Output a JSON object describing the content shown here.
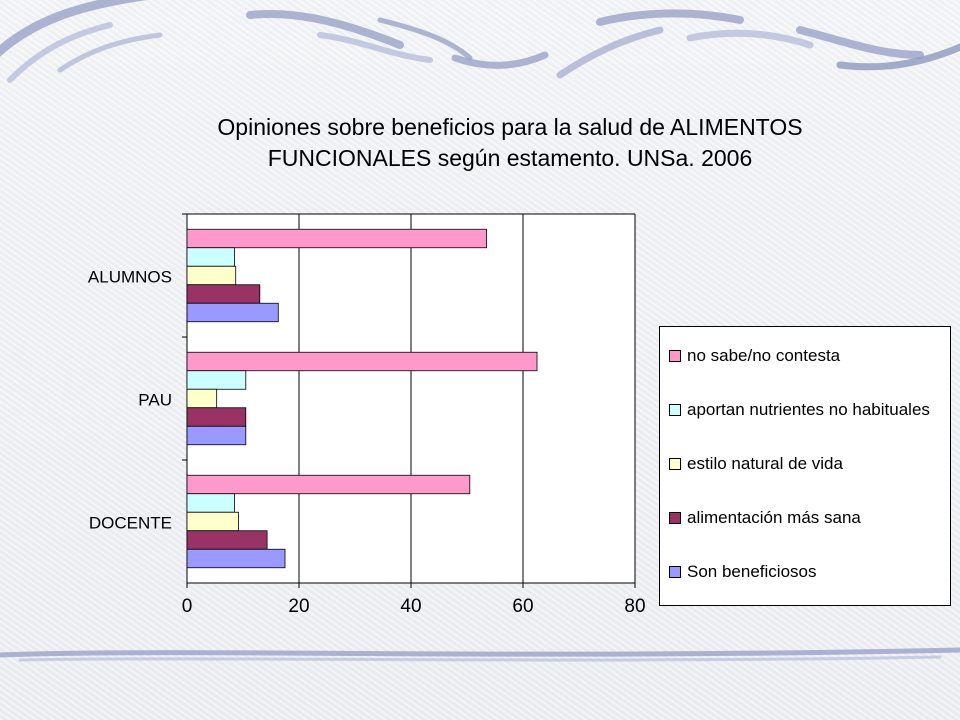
{
  "chart_data": {
    "type": "bar",
    "orientation": "horizontal",
    "title": "Opiniones sobre beneficios para la salud de ALIMENTOS\nFUNCIONALES según estamento. UNSa. 2006",
    "categories": [
      "ALUMNOS",
      "PAU",
      "DOCENTE"
    ],
    "series": [
      {
        "name": "no sabe/no contesta",
        "color": "#ff99cc",
        "values": [
          53.5,
          62.5,
          50.5
        ]
      },
      {
        "name": "aportan nutrientes no habituales",
        "color": "#ccffff",
        "values": [
          8.5,
          10.5,
          8.5
        ]
      },
      {
        "name": "estilo natural de vida",
        "color": "#ffffcc",
        "values": [
          8.7,
          5.3,
          9.2
        ]
      },
      {
        "name": "alimentación más sana",
        "color": "#993366",
        "values": [
          13.0,
          10.5,
          14.3
        ]
      },
      {
        "name": "Son beneficiosos",
        "color": "#9999ff",
        "values": [
          16.3,
          10.5,
          17.5
        ]
      }
    ],
    "xlim": [
      0,
      80
    ],
    "x_ticks": [
      "0",
      "20",
      "40",
      "60",
      "80"
    ],
    "xlabel": "",
    "ylabel": "",
    "grid": "vertical",
    "legend_position": "right"
  }
}
